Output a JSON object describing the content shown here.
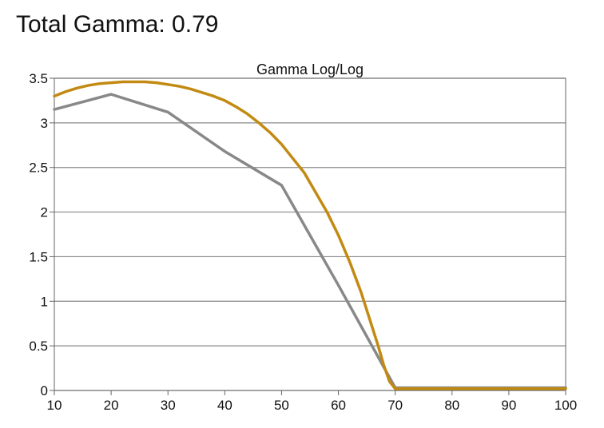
{
  "header": {
    "title": "Total Gamma: 0.79"
  },
  "colors": {
    "measured": "#C28A12",
    "reference": "#888888",
    "grid": "#888888",
    "axis": "#666666"
  },
  "chart_data": {
    "type": "line",
    "title": "Gamma Log/Log",
    "xlabel": "",
    "ylabel": "",
    "xlim": [
      10,
      100
    ],
    "ylim": [
      0,
      3.5
    ],
    "xticks": [
      10,
      20,
      30,
      40,
      50,
      60,
      70,
      80,
      90,
      100
    ],
    "yticks": [
      0,
      0.5,
      1,
      1.5,
      2,
      2.5,
      3,
      3.5
    ],
    "grid": true,
    "legend": "none",
    "series": [
      {
        "color": "#888888",
        "x": [
          10,
          20,
          30,
          40,
          50,
          60,
          70,
          80,
          90,
          100
        ],
        "y": [
          3.15,
          3.32,
          3.12,
          2.68,
          2.3,
          1.18,
          0.03,
          0.03,
          0.03,
          0.03
        ]
      },
      {
        "color": "#C28A12",
        "x": [
          10,
          12,
          14,
          16,
          18,
          20,
          22,
          24,
          26,
          28,
          30,
          32,
          34,
          36,
          38,
          40,
          42,
          44,
          46,
          48,
          50,
          52,
          54,
          56,
          58,
          60,
          62,
          64,
          65,
          66,
          67,
          68,
          69,
          70,
          71,
          72,
          80,
          90,
          100
        ],
        "y": [
          3.3,
          3.35,
          3.39,
          3.42,
          3.44,
          3.45,
          3.46,
          3.46,
          3.46,
          3.45,
          3.43,
          3.41,
          3.38,
          3.34,
          3.3,
          3.25,
          3.18,
          3.1,
          3.0,
          2.89,
          2.76,
          2.6,
          2.44,
          2.22,
          2.0,
          1.74,
          1.44,
          1.1,
          0.9,
          0.7,
          0.5,
          0.28,
          0.1,
          0.02,
          0.02,
          0.02,
          0.02,
          0.02,
          0.02
        ]
      }
    ]
  }
}
